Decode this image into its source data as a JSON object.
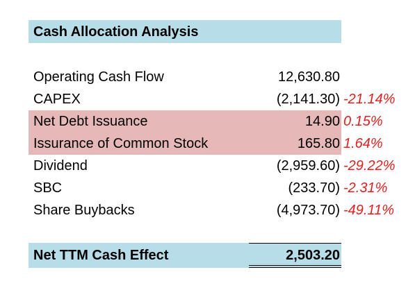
{
  "title": "Cash Allocation Analysis",
  "rows": [
    {
      "label": "Operating Cash Flow",
      "value": "12,630.80",
      "pct": ""
    },
    {
      "label": "CAPEX",
      "value": "(2,141.30)",
      "pct": "-21.14%"
    },
    {
      "label": "Net Debt Issuance",
      "value": "14.90",
      "pct": "0.15%"
    },
    {
      "label": "Issurance of Common Stock",
      "value": "165.80",
      "pct": "1.64%"
    },
    {
      "label": "Dividend",
      "value": "(2,959.60)",
      "pct": "-29.22%"
    },
    {
      "label": "SBC",
      "value": "(233.70)",
      "pct": "-2.31%"
    },
    {
      "label": "Share Buybacks",
      "value": "(4,973.70)",
      "pct": "-49.11%"
    }
  ],
  "total": {
    "label": "Net TTM Cash Effect",
    "value": "2,503.20"
  },
  "colors": {
    "title_fill": "#b7dde8",
    "highlight_fill": "#e6b8b7",
    "negative_pct": "#e02020"
  }
}
